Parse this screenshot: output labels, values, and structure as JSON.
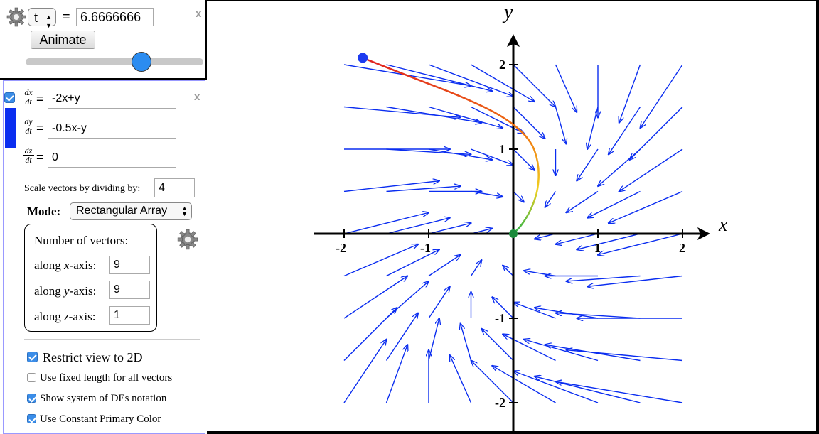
{
  "animation": {
    "variable": "t",
    "equals": "=",
    "value": "6.6666666",
    "animate_label": "Animate",
    "slider_fraction": 0.65
  },
  "close_label": "x",
  "system": {
    "equals": "=",
    "dx_num": "dx",
    "dx_den": "dt",
    "dx_value": "-2x+y",
    "dy_num": "dy",
    "dy_den": "dt",
    "dy_value": "-0.5x-y",
    "dz_num": "dz",
    "dz_den": "dt",
    "dz_value": "0",
    "color": "#0a2df0"
  },
  "scale": {
    "label": "Scale vectors by dividing by:",
    "value": "4"
  },
  "mode": {
    "label": "Mode:",
    "value": "Rectangular Array"
  },
  "vectors": {
    "title": "Number of vectors:",
    "x_prefix": "along ",
    "x_var": "x",
    "x_suffix": "-axis:",
    "x_value": "9",
    "y_prefix": "along ",
    "y_var": "y",
    "y_suffix": "-axis:",
    "y_value": "9",
    "z_prefix": "along ",
    "z_var": "z",
    "z_suffix": "-axis:",
    "z_value": "1"
  },
  "options": [
    {
      "label": "Restrict view to 2D",
      "checked": true,
      "large": true
    },
    {
      "label": "Use fixed length for all vectors",
      "checked": false,
      "large": false
    },
    {
      "label": "Show system of DEs notation",
      "checked": true,
      "large": false
    },
    {
      "label": "Use Constant Primary Color",
      "checked": true,
      "large": false
    }
  ],
  "graph": {
    "x_axis_label": "x",
    "y_axis_label": "y",
    "x_ticks": [
      "-2",
      "-1",
      "1",
      "2"
    ],
    "y_ticks": [
      "2",
      "1",
      "-1",
      "-2"
    ],
    "vector_color": "#0a2df0",
    "start_point": {
      "x": -1.78,
      "y": 2.08,
      "color": "#1d3bf0"
    },
    "end_point": {
      "x": 0,
      "y": 0,
      "color": "#1a8a3a"
    },
    "trajectory": [
      [
        -1.78,
        2.08
      ],
      [
        -1.2,
        1.85
      ],
      [
        -0.6,
        1.62
      ],
      [
        -0.1,
        1.38
      ],
      [
        0.2,
        1.12
      ],
      [
        0.3,
        0.85
      ],
      [
        0.3,
        0.55
      ],
      [
        0.22,
        0.3
      ],
      [
        0.1,
        0.1
      ],
      [
        0,
        0
      ]
    ]
  }
}
